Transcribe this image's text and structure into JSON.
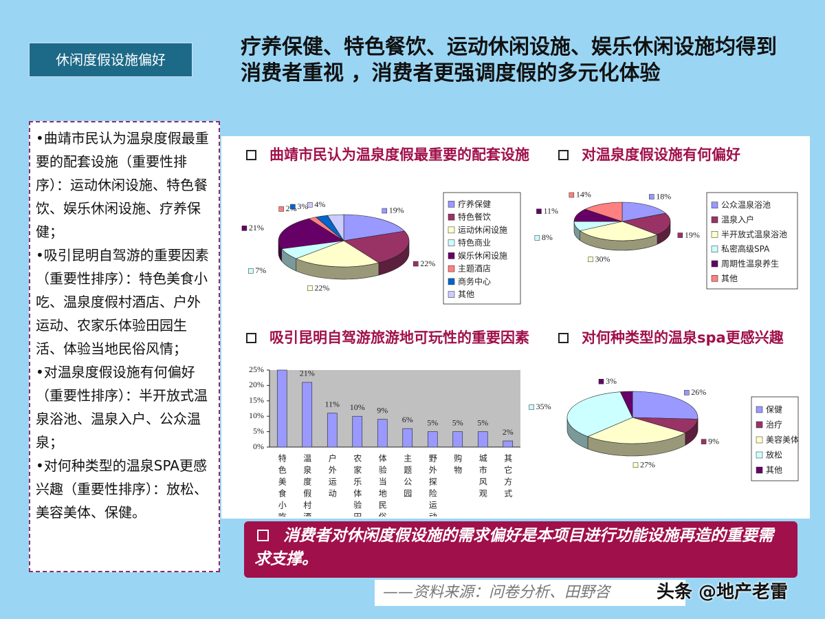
{
  "tag": "休闲度假设施偏好",
  "title": "疗养保健、特色餐饮、运动休闲设施、娱乐休闲设施均得到消费者重视 ，消费者更强调度假的多元化体验",
  "sidebar": [
    "•曲靖市民认为温泉度假最重要的配套设施（重要性排序）：运动休闲设施、特色餐饮、娱乐休闲设施、疗养保健；",
    "•吸引昆明自驾游的重要因素（重要性排序）：特色美食小吃、温泉度假村酒店、户外运动、农家乐体验田园生活、体验当地民俗风情；",
    "•对温泉度假设施有何偏好（重要性排序）：半开放式温泉浴池、温泉入户、公众温泉；",
    "•对何种类型的温泉SPA更感兴趣（重要性排序）：放松、美容美体、保健。"
  ],
  "chart_data": [
    {
      "type": "pie",
      "title": "曲靖市民认为温泉度假最重要的配套设施",
      "categories": [
        "疗养保健",
        "特色餐饮",
        "运动休闲设施",
        "特色商业",
        "娱乐休闲设施",
        "主题酒店",
        "商务中心",
        "其他"
      ],
      "values": [
        19,
        22,
        22,
        7,
        21,
        2,
        3,
        4
      ],
      "value_labels": [
        "19%",
        "22%",
        "22%",
        "7%",
        "21%",
        "2%",
        "3%",
        "4%"
      ],
      "colors": [
        "#9999ff",
        "#993366",
        "#ffffcc",
        "#ccffff",
        "#660066",
        "#ff8080",
        "#0066cc",
        "#ccccff"
      ]
    },
    {
      "type": "pie",
      "title": "对温泉度假设施有何偏好",
      "categories": [
        "公众温泉浴池",
        "温泉入户",
        "半开放式温泉浴池",
        "私密高级SPA",
        "周期性温泉养生",
        "其他"
      ],
      "values": [
        18,
        19,
        30,
        8,
        11,
        14
      ],
      "value_labels": [
        "18%",
        "19%",
        "30%",
        "8%",
        "11%",
        "14%"
      ],
      "colors": [
        "#9999ff",
        "#993366",
        "#ffffcc",
        "#ccffff",
        "#660066",
        "#ff8080"
      ]
    },
    {
      "type": "bar",
      "title": "吸引昆明自驾游旅游地可玩性的重要因素",
      "categories": [
        "特色美食小吃",
        "温泉度假村酒店",
        "户外运动",
        "农家乐体验田园生活",
        "体验当地民俗风情",
        "主题公园",
        "野外探险运动",
        "购物",
        "城市风观",
        "其它方式"
      ],
      "values": [
        25,
        21,
        11,
        10,
        9,
        6,
        5,
        5,
        5,
        2
      ],
      "value_labels": [
        null,
        "21%",
        "11%",
        "10%",
        "9%",
        "6%",
        "5%",
        "5%",
        "5%",
        "2%"
      ],
      "color": "#9999ff",
      "ylim": [
        0,
        25
      ],
      "yticks": [
        {
          "value": 0,
          "label": "0%"
        },
        {
          "value": 5,
          "label": "5%"
        },
        {
          "value": 10,
          "label": "10%"
        },
        {
          "value": 15,
          "label": "15%"
        },
        {
          "value": 20,
          "label": "20%"
        },
        {
          "value": 25,
          "label": "25%"
        }
      ]
    },
    {
      "type": "pie",
      "title": "对何种类型的温泉spa更感兴趣",
      "categories": [
        "保健",
        "治疗",
        "美容美体",
        "放松",
        "其他"
      ],
      "values": [
        26,
        9,
        27,
        35,
        3
      ],
      "value_labels": [
        "26%",
        "9%",
        "27%",
        "35%",
        "3%"
      ],
      "colors": [
        "#9999ff",
        "#993366",
        "#ffffcc",
        "#ccffff",
        "#660066"
      ]
    }
  ],
  "conclusion": "消费者对休闲度假设施的需求偏好是本项目进行功能设施再造的重要需求支撑。",
  "source": "——资料来源：问卷分析、田野咨",
  "watermark": "头条 @地产老雷"
}
